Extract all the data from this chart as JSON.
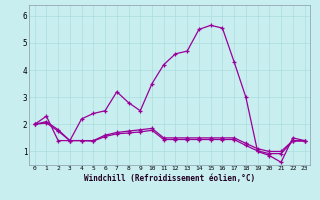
{
  "xlabel": "Windchill (Refroidissement éolien,°C)",
  "bg_color": "#c8eef0",
  "line_color": "#990099",
  "grid_color": "#aadddd",
  "x_ticks": [
    0,
    1,
    2,
    3,
    4,
    5,
    6,
    7,
    8,
    9,
    10,
    11,
    12,
    13,
    14,
    15,
    16,
    17,
    18,
    19,
    20,
    21,
    22,
    23
  ],
  "y_ticks": [
    1,
    2,
    3,
    4,
    5,
    6
  ],
  "ylim": [
    0.5,
    6.4
  ],
  "xlim": [
    -0.5,
    23.5
  ],
  "series1_x": [
    0,
    1,
    2,
    3,
    4,
    5,
    6,
    7,
    8,
    9,
    10,
    11,
    12,
    13,
    14,
    15,
    16,
    17,
    18,
    19,
    20,
    21,
    22,
    23
  ],
  "series1_y": [
    2.0,
    2.3,
    1.4,
    1.4,
    2.2,
    2.4,
    2.5,
    3.2,
    2.8,
    2.5,
    3.5,
    4.2,
    4.6,
    4.7,
    5.5,
    5.65,
    5.55,
    4.3,
    3.0,
    1.0,
    0.85,
    0.6,
    1.5,
    1.4
  ],
  "series2_x": [
    0,
    1,
    2,
    3,
    4,
    5,
    6,
    7,
    8,
    9,
    10,
    11,
    12,
    13,
    14,
    15,
    16,
    17,
    18,
    19,
    20,
    21,
    22,
    23
  ],
  "series2_y": [
    2.0,
    2.1,
    1.8,
    1.4,
    1.4,
    1.4,
    1.6,
    1.7,
    1.75,
    1.8,
    1.85,
    1.5,
    1.5,
    1.5,
    1.5,
    1.5,
    1.5,
    1.5,
    1.3,
    1.1,
    1.0,
    1.0,
    1.4,
    1.4
  ],
  "series3_x": [
    0,
    1,
    2,
    3,
    4,
    5,
    6,
    7,
    8,
    9,
    10,
    11,
    12,
    13,
    14,
    15,
    16,
    17,
    18,
    19,
    20,
    21,
    22,
    23
  ],
  "series3_y": [
    2.0,
    2.05,
    1.75,
    1.4,
    1.4,
    1.38,
    1.55,
    1.65,
    1.68,
    1.72,
    1.78,
    1.44,
    1.44,
    1.44,
    1.44,
    1.44,
    1.44,
    1.44,
    1.22,
    1.02,
    0.92,
    0.92,
    1.38,
    1.38
  ],
  "xlabel_fontsize": 5.5,
  "tick_fontsize_x": 4.5,
  "tick_fontsize_y": 5.5,
  "linewidth": 0.9,
  "markersize": 3.5
}
